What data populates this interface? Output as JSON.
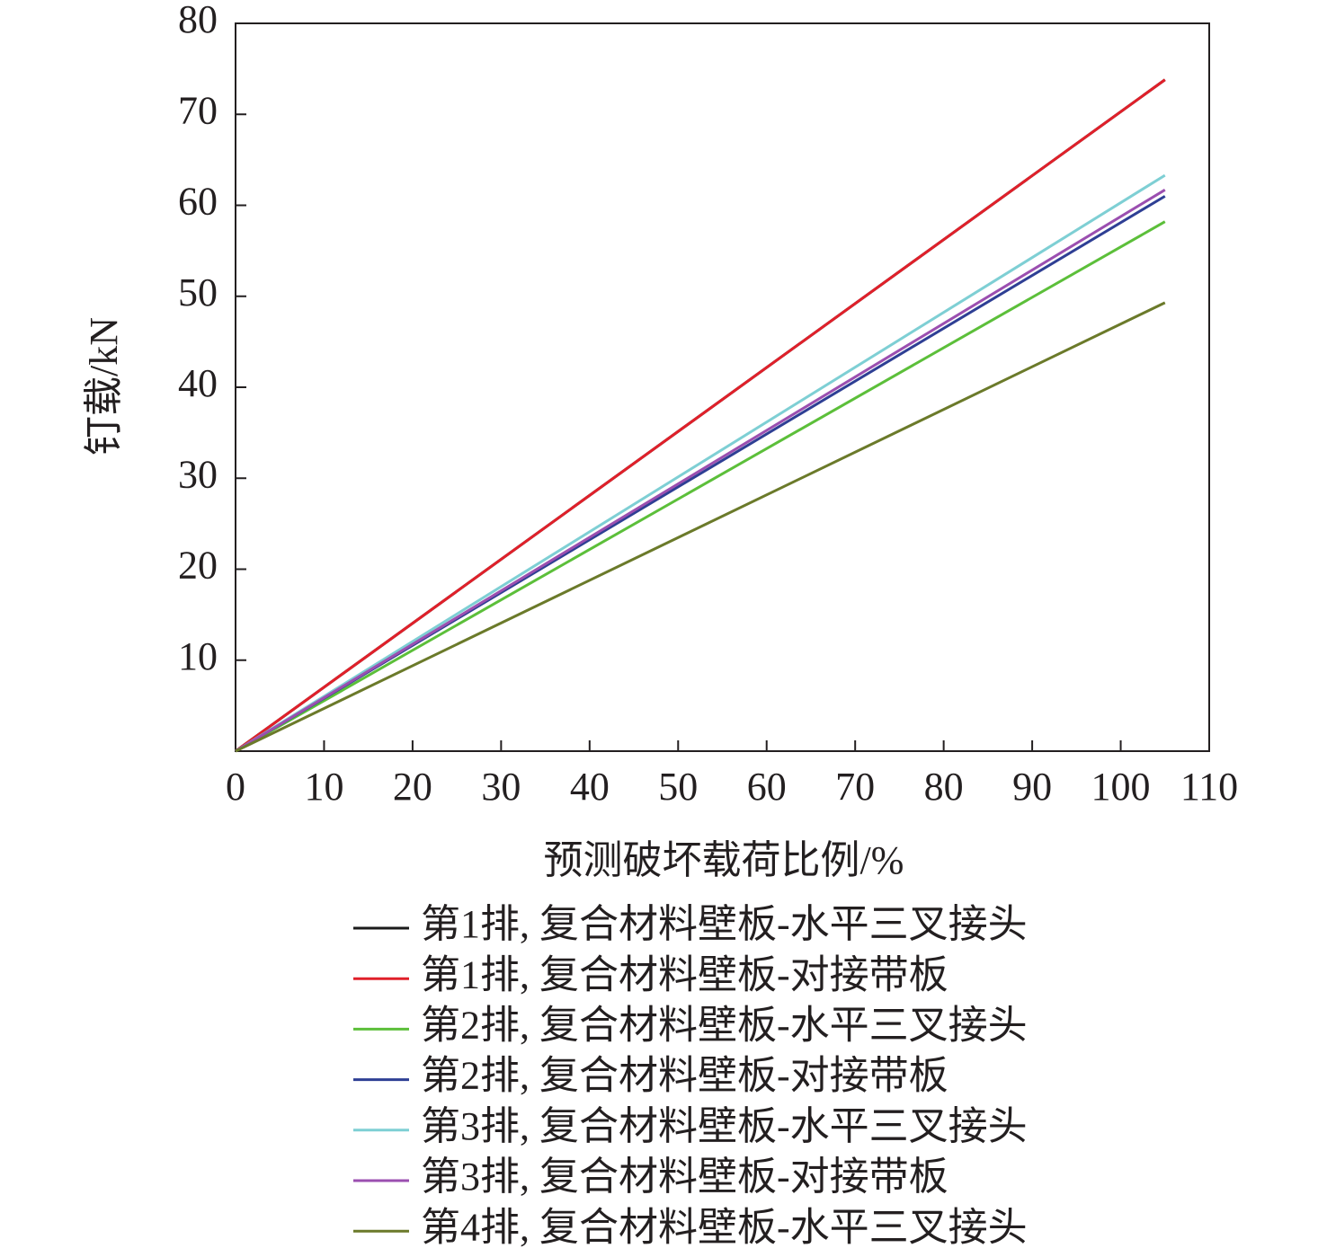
{
  "chart_data": {
    "type": "line",
    "x_label": "预测破坏载荷比例/%",
    "y_label": "钉载/kN",
    "x": [
      0,
      105
    ],
    "xlim": [
      0,
      110
    ],
    "xticks": [
      0,
      10,
      20,
      30,
      40,
      50,
      60,
      70,
      80,
      90,
      100,
      110
    ],
    "ylim": [
      0,
      80
    ],
    "yticks": [
      10,
      20,
      30,
      40,
      50,
      60,
      70,
      80
    ],
    "series": [
      {
        "name": "第1排, 复合材料壁板-水平三叉接头",
        "color": "#1a1a1a",
        "values": [
          0,
          73.8
        ]
      },
      {
        "name": "第1排, 复合材料壁板-对接带板",
        "color": "#e0202a",
        "values": [
          0,
          73.8
        ]
      },
      {
        "name": "第2排, 复合材料壁板-水平三叉接头",
        "color": "#5cbf3a",
        "values": [
          0,
          58.2
        ]
      },
      {
        "name": "第2排, 复合材料壁板-对接带板",
        "color": "#2e3f94",
        "values": [
          0,
          61.0
        ]
      },
      {
        "name": "第3排, 复合材料壁板-水平三叉接头",
        "color": "#7ecfd4",
        "values": [
          0,
          63.3
        ]
      },
      {
        "name": "第3排, 复合材料壁板-对接带板",
        "color": "#9b4fb0",
        "values": [
          0,
          61.7
        ]
      },
      {
        "name": "第4排, 复合材料壁板-水平三叉接头",
        "color": "#6b7a2a",
        "values": [
          0,
          49.3
        ]
      }
    ]
  }
}
